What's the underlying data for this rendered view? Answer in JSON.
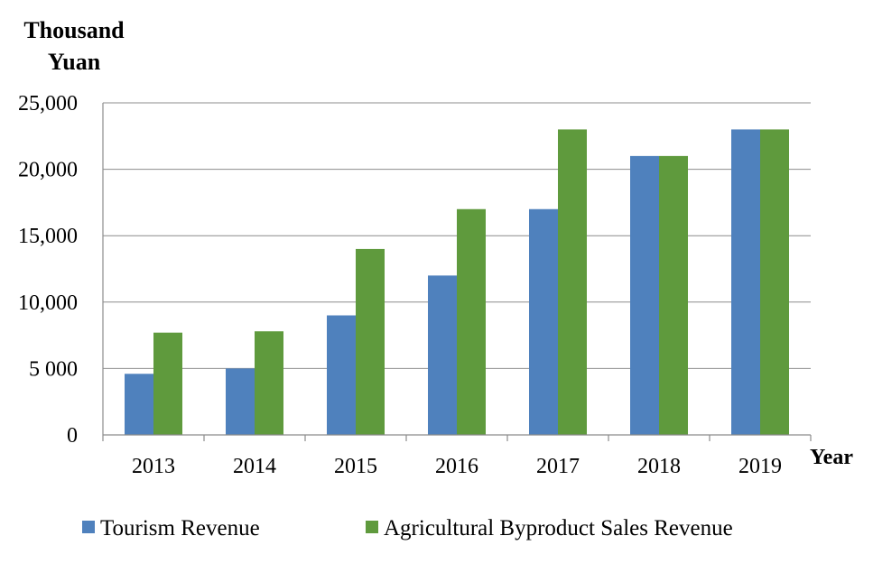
{
  "chart_data": {
    "type": "bar",
    "title": "",
    "ylabel_lines": [
      "Thousand",
      "Yuan"
    ],
    "xlabel": "Year",
    "categories": [
      "2013",
      "2014",
      "2015",
      "2016",
      "2017",
      "2018",
      "2019"
    ],
    "series": [
      {
        "name": "Tourism Revenue",
        "color": "#4f81bd",
        "values": [
          4600,
          5000,
          9000,
          12000,
          17000,
          21000,
          23000
        ]
      },
      {
        "name": "Agricultural Byproduct Sales Revenue",
        "color": "#5f9a3d",
        "values": [
          7700,
          7800,
          14000,
          17000,
          23000,
          21000,
          23000
        ]
      }
    ],
    "ylim": [
      0,
      25000
    ],
    "yticks": [
      0,
      5000,
      10000,
      15000,
      20000,
      25000
    ],
    "ytick_labels": [
      "0",
      "5 000",
      "10,000",
      "15,000",
      "20,000",
      "25,000"
    ],
    "grid": true,
    "legend_position": "bottom"
  }
}
